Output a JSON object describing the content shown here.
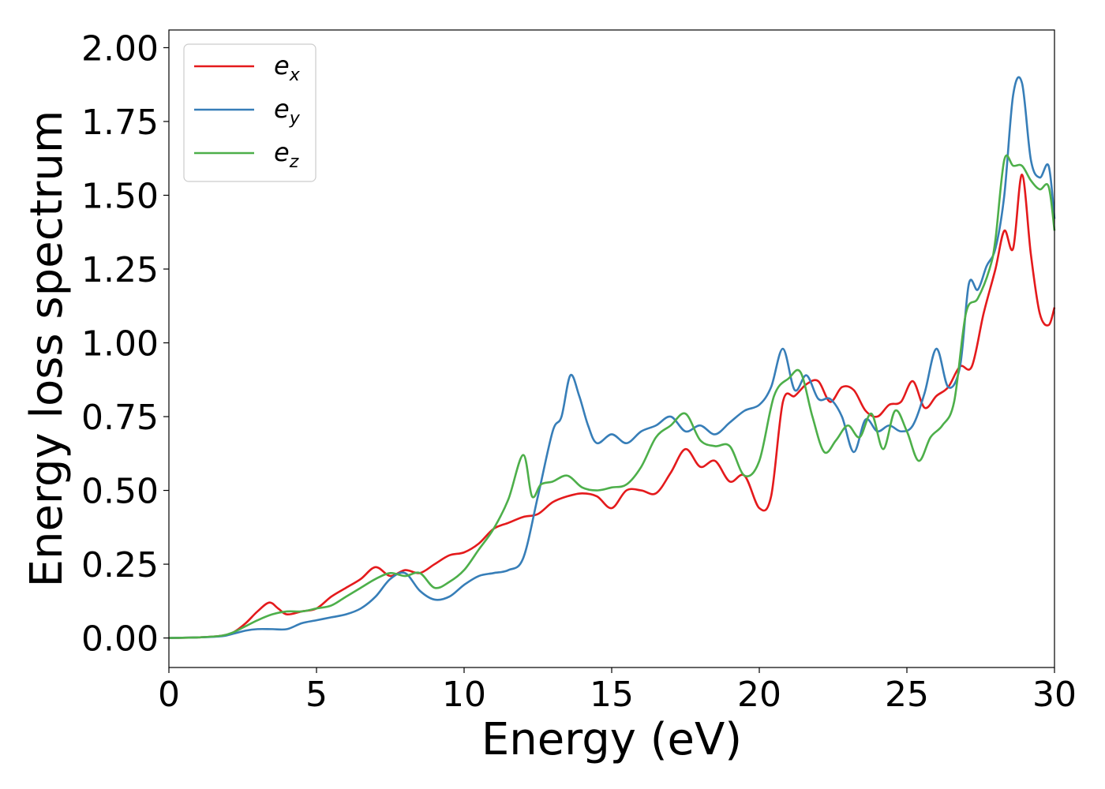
{
  "chart_data": {
    "type": "line",
    "title": "",
    "xlabel": "Energy (eV)",
    "ylabel": "Energy loss spectrum",
    "xlim": [
      0,
      30
    ],
    "ylim": [
      -0.1,
      2.06
    ],
    "xticks": [
      0,
      5,
      10,
      15,
      20,
      25,
      30
    ],
    "xtick_labels": [
      "0",
      "5",
      "10",
      "15",
      "20",
      "25",
      "30"
    ],
    "yticks": [
      0,
      0.25,
      0.5,
      0.75,
      1.0,
      1.25,
      1.5,
      1.75,
      2.0
    ],
    "ytick_labels": [
      "0.00",
      "0.25",
      "0.50",
      "0.75",
      "1.00",
      "1.25",
      "1.50",
      "1.75",
      "2.00"
    ],
    "grid": false,
    "legend_position": "top-left",
    "series": [
      {
        "name": "e_x",
        "label_base": "e",
        "label_sub": "x",
        "color": "#e41a1c",
        "x": [
          0,
          1,
          1.8,
          2.2,
          2.6,
          3.0,
          3.4,
          3.7,
          4.0,
          4.5,
          5.0,
          5.5,
          6.0,
          6.5,
          7.0,
          7.5,
          8.0,
          8.5,
          9.0,
          9.5,
          10.0,
          10.5,
          11.0,
          11.5,
          12.0,
          12.5,
          13.0,
          13.5,
          14.0,
          14.5,
          15.0,
          15.5,
          16.0,
          16.5,
          17.0,
          17.5,
          18.0,
          18.5,
          19.0,
          19.5,
          20.0,
          20.4,
          20.8,
          21.2,
          21.6,
          22.0,
          22.4,
          22.8,
          23.2,
          23.6,
          24.0,
          24.4,
          24.8,
          25.2,
          25.6,
          26.0,
          26.4,
          26.8,
          27.2,
          27.6,
          28.0,
          28.3,
          28.6,
          28.9,
          29.2,
          29.5,
          29.8,
          30.0
        ],
        "y": [
          0,
          0.002,
          0.008,
          0.02,
          0.05,
          0.09,
          0.12,
          0.1,
          0.08,
          0.09,
          0.1,
          0.14,
          0.17,
          0.2,
          0.24,
          0.21,
          0.23,
          0.22,
          0.25,
          0.28,
          0.29,
          0.32,
          0.37,
          0.39,
          0.41,
          0.42,
          0.46,
          0.48,
          0.49,
          0.48,
          0.44,
          0.5,
          0.5,
          0.49,
          0.56,
          0.64,
          0.58,
          0.6,
          0.53,
          0.55,
          0.44,
          0.48,
          0.8,
          0.82,
          0.86,
          0.87,
          0.8,
          0.85,
          0.84,
          0.77,
          0.75,
          0.79,
          0.8,
          0.87,
          0.78,
          0.82,
          0.85,
          0.92,
          0.92,
          1.1,
          1.25,
          1.38,
          1.32,
          1.57,
          1.3,
          1.1,
          1.06,
          1.12
        ]
      },
      {
        "name": "e_y",
        "label_base": "e",
        "label_sub": "y",
        "color": "#377eb8",
        "x": [
          0,
          1,
          1.8,
          2.2,
          2.6,
          3.0,
          3.5,
          4.0,
          4.5,
          5.0,
          5.5,
          6.0,
          6.5,
          7.0,
          7.5,
          8.0,
          8.5,
          9.0,
          9.5,
          10.0,
          10.5,
          11.0,
          11.5,
          12.0,
          12.5,
          13.0,
          13.3,
          13.6,
          13.9,
          14.2,
          14.5,
          15.0,
          15.5,
          16.0,
          16.5,
          17.0,
          17.5,
          18.0,
          18.5,
          19.0,
          19.5,
          20.0,
          20.4,
          20.8,
          21.2,
          21.6,
          22.0,
          22.4,
          22.8,
          23.2,
          23.6,
          24.0,
          24.4,
          24.8,
          25.2,
          25.6,
          26.0,
          26.4,
          26.8,
          27.1,
          27.4,
          27.7,
          28.0,
          28.3,
          28.6,
          28.9,
          29.2,
          29.5,
          29.8,
          30.0
        ],
        "y": [
          0,
          0.002,
          0.006,
          0.015,
          0.025,
          0.03,
          0.03,
          0.03,
          0.05,
          0.06,
          0.07,
          0.08,
          0.1,
          0.14,
          0.2,
          0.22,
          0.16,
          0.13,
          0.14,
          0.18,
          0.21,
          0.22,
          0.23,
          0.27,
          0.48,
          0.7,
          0.75,
          0.89,
          0.82,
          0.72,
          0.66,
          0.69,
          0.66,
          0.7,
          0.72,
          0.75,
          0.7,
          0.72,
          0.69,
          0.73,
          0.77,
          0.79,
          0.85,
          0.98,
          0.84,
          0.89,
          0.81,
          0.81,
          0.75,
          0.63,
          0.74,
          0.7,
          0.72,
          0.7,
          0.72,
          0.83,
          0.98,
          0.85,
          0.92,
          1.2,
          1.18,
          1.26,
          1.32,
          1.5,
          1.84,
          1.88,
          1.62,
          1.56,
          1.6,
          1.42
        ]
      },
      {
        "name": "e_z",
        "label_base": "e",
        "label_sub": "z",
        "color": "#4daf4a",
        "x": [
          0,
          1,
          1.8,
          2.2,
          2.6,
          3.0,
          3.5,
          4.0,
          4.5,
          5.0,
          5.5,
          6.0,
          6.5,
          7.0,
          7.5,
          8.0,
          8.5,
          9.0,
          9.5,
          10.0,
          10.5,
          11.0,
          11.5,
          12.0,
          12.3,
          12.6,
          13.0,
          13.5,
          14.0,
          14.5,
          15.0,
          15.5,
          16.0,
          16.5,
          17.0,
          17.5,
          18.0,
          18.5,
          19.0,
          19.5,
          20.0,
          20.5,
          21.0,
          21.4,
          21.8,
          22.2,
          22.6,
          23.0,
          23.4,
          23.8,
          24.2,
          24.6,
          25.0,
          25.4,
          25.8,
          26.2,
          26.6,
          27.0,
          27.4,
          27.8,
          28.0,
          28.3,
          28.6,
          28.9,
          29.2,
          29.5,
          29.8,
          30.0
        ],
        "y": [
          0,
          0.002,
          0.008,
          0.02,
          0.04,
          0.06,
          0.08,
          0.09,
          0.09,
          0.1,
          0.11,
          0.14,
          0.17,
          0.2,
          0.22,
          0.21,
          0.22,
          0.17,
          0.19,
          0.23,
          0.3,
          0.37,
          0.47,
          0.62,
          0.48,
          0.52,
          0.53,
          0.55,
          0.51,
          0.5,
          0.51,
          0.52,
          0.58,
          0.68,
          0.72,
          0.76,
          0.67,
          0.65,
          0.65,
          0.55,
          0.6,
          0.82,
          0.88,
          0.9,
          0.75,
          0.63,
          0.67,
          0.72,
          0.68,
          0.76,
          0.64,
          0.77,
          0.7,
          0.6,
          0.68,
          0.72,
          0.8,
          1.1,
          1.15,
          1.25,
          1.35,
          1.62,
          1.6,
          1.6,
          1.55,
          1.52,
          1.53,
          1.38
        ]
      }
    ]
  }
}
